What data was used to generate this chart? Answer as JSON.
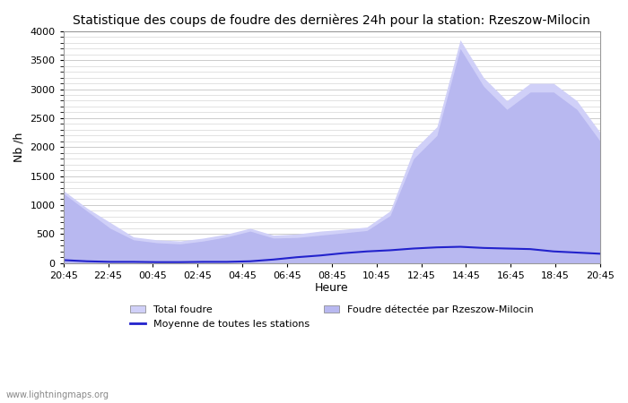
{
  "title": "Statistique des coups de foudre des dernières 24h pour la station: Rzeszow-Milocin",
  "ylabel": "Nb /h",
  "xlabel": "Heure",
  "watermark": "www.lightningmaps.org",
  "xlim": [
    0,
    24
  ],
  "ylim": [
    0,
    4000
  ],
  "yticks": [
    0,
    500,
    1000,
    1500,
    2000,
    2500,
    3000,
    3500,
    4000
  ],
  "xtick_labels": [
    "20:45",
    "22:45",
    "00:45",
    "02:45",
    "04:45",
    "06:45",
    "08:45",
    "10:45",
    "12:45",
    "14:45",
    "16:45",
    "18:45",
    "20:45"
  ],
  "bg_color": "#ffffff",
  "grid_color": "#cccccc",
  "fill_total_color": "#d0d0f8",
  "fill_local_color": "#b8b8f0",
  "line_avg_color": "#2222cc",
  "legend_labels": [
    "Total foudre",
    "Moyenne de toutes les stations",
    "Foudre détectée par Rzeszow-Milocin"
  ],
  "total_foudre": [
    1250,
    950,
    700,
    450,
    400,
    380,
    430,
    500,
    600,
    480,
    500,
    550,
    580,
    620,
    900,
    1950,
    2350,
    3850,
    3200,
    2800,
    3100,
    3100,
    2800,
    2250
  ],
  "local_foudre": [
    1200,
    900,
    600,
    400,
    350,
    330,
    380,
    450,
    550,
    430,
    440,
    480,
    520,
    560,
    820,
    1800,
    2200,
    3700,
    3050,
    2650,
    2950,
    2950,
    2650,
    2100
  ],
  "avg_foudre": [
    50,
    30,
    20,
    20,
    15,
    15,
    20,
    20,
    30,
    60,
    100,
    130,
    170,
    200,
    220,
    250,
    270,
    280,
    260,
    250,
    240,
    200,
    180,
    160
  ]
}
